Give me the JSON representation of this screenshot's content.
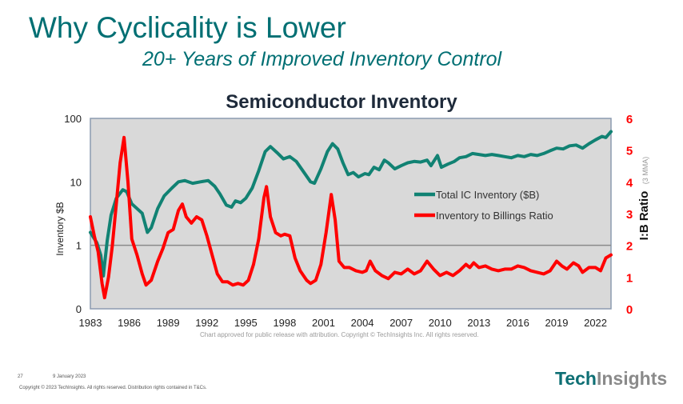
{
  "slide": {
    "title": "Why Cyclicality is Lower",
    "subtitle": "20+ Years of Improved Inventory Control",
    "credit": "Chart approved  for public release with attribution.  Copyright © TechInsights  Inc.  All rights reserved.",
    "page_number": "27",
    "date": "9 January 2023",
    "copyright": "Copyright © 2023 TechInsights. All rights reserved. Distribution rights contained in T&Cs.",
    "logo": {
      "part1": "Tech",
      "part2": "Insights"
    }
  },
  "colors": {
    "title": "#006f73",
    "inventory": "#118273",
    "ratio": "#ff0000",
    "plot_bg": "#d9d9d9",
    "right_axis": "#ff0000"
  },
  "chart_data": {
    "type": "line",
    "title": "Semiconductor Inventory",
    "xlabel": "",
    "ylabel": "Inventory $B",
    "y2label": "I:B Ratio",
    "y2label_note": "(3 MMA)",
    "x_ticks": [
      "1983",
      "1986",
      "1989",
      "1992",
      "1995",
      "1998",
      "2001",
      "2004",
      "2007",
      "2010",
      "2013",
      "2016",
      "2019",
      "2022"
    ],
    "xlim": [
      1983,
      2023.2
    ],
    "y_scale": "log",
    "y_ticks": [
      {
        "value": 0.1,
        "label": "0"
      },
      {
        "value": 1,
        "label": "1"
      },
      {
        "value": 10,
        "label": "10"
      },
      {
        "value": 100,
        "label": "100"
      }
    ],
    "ylim": [
      0.1,
      100
    ],
    "y2_ticks": [
      "0",
      "1",
      "2",
      "3",
      "4",
      "5",
      "6"
    ],
    "y2lim": [
      0,
      6
    ],
    "reference_line": {
      "axis": "y",
      "value": 1
    },
    "legend": {
      "placement": "center-right",
      "entries": [
        "Total IC Inventory  ($B)",
        "Inventory to Billings Ratio"
      ]
    },
    "series": [
      {
        "name": "Total IC Inventory  ($B)",
        "axis": "left",
        "points": [
          [
            1983.0,
            1.6
          ],
          [
            1983.5,
            1.1
          ],
          [
            1983.8,
            0.7
          ],
          [
            1984.0,
            0.33
          ],
          [
            1984.3,
            1.2
          ],
          [
            1984.6,
            3.0
          ],
          [
            1985.0,
            5.5
          ],
          [
            1985.5,
            7.5
          ],
          [
            1985.8,
            7.0
          ],
          [
            1986.2,
            4.5
          ],
          [
            1986.6,
            3.8
          ],
          [
            1987.0,
            3.2
          ],
          [
            1987.4,
            1.6
          ],
          [
            1987.7,
            1.9
          ],
          [
            1988.2,
            3.8
          ],
          [
            1988.7,
            6.0
          ],
          [
            1989.3,
            8.0
          ],
          [
            1989.8,
            10.0
          ],
          [
            1990.3,
            10.5
          ],
          [
            1990.9,
            9.5
          ],
          [
            1991.5,
            10.0
          ],
          [
            1992.1,
            10.5
          ],
          [
            1992.6,
            8.5
          ],
          [
            1993.0,
            6.5
          ],
          [
            1993.5,
            4.3
          ],
          [
            1993.9,
            4.0
          ],
          [
            1994.2,
            5.0
          ],
          [
            1994.6,
            4.7
          ],
          [
            1995.0,
            5.5
          ],
          [
            1995.5,
            8.0
          ],
          [
            1996.0,
            15.0
          ],
          [
            1996.5,
            30.0
          ],
          [
            1996.9,
            36.0
          ],
          [
            1997.4,
            29.0
          ],
          [
            1997.9,
            23.0
          ],
          [
            1998.4,
            25.0
          ],
          [
            1998.9,
            21.0
          ],
          [
            1999.5,
            14.0
          ],
          [
            2000.0,
            10.0
          ],
          [
            2000.3,
            9.5
          ],
          [
            2000.8,
            16.0
          ],
          [
            2001.3,
            30.0
          ],
          [
            2001.7,
            40.0
          ],
          [
            2002.1,
            33.0
          ],
          [
            2002.5,
            20.0
          ],
          [
            2002.9,
            13.0
          ],
          [
            2003.3,
            14.0
          ],
          [
            2003.7,
            12.0
          ],
          [
            2004.2,
            13.5
          ],
          [
            2004.5,
            13.0
          ],
          [
            2004.9,
            17.0
          ],
          [
            2005.3,
            15.5
          ],
          [
            2005.7,
            22.0
          ],
          [
            2006.0,
            20.0
          ],
          [
            2006.5,
            16.0
          ],
          [
            2007.0,
            18.0
          ],
          [
            2007.5,
            20.0
          ],
          [
            2008.0,
            21.0
          ],
          [
            2008.5,
            20.5
          ],
          [
            2009.0,
            22.0
          ],
          [
            2009.3,
            18.0
          ],
          [
            2009.8,
            26.0
          ],
          [
            2010.1,
            17.0
          ],
          [
            2010.6,
            19.0
          ],
          [
            2011.1,
            21.0
          ],
          [
            2011.5,
            24.0
          ],
          [
            2012.0,
            25.0
          ],
          [
            2012.5,
            28.0
          ],
          [
            2013.0,
            27.0
          ],
          [
            2013.5,
            26.0
          ],
          [
            2014.0,
            27.0
          ],
          [
            2014.5,
            26.0
          ],
          [
            2015.0,
            25.0
          ],
          [
            2015.5,
            24.0
          ],
          [
            2016.0,
            26.0
          ],
          [
            2016.5,
            25.0
          ],
          [
            2017.0,
            27.0
          ],
          [
            2017.5,
            26.0
          ],
          [
            2018.0,
            28.0
          ],
          [
            2018.5,
            31.0
          ],
          [
            2019.0,
            34.0
          ],
          [
            2019.5,
            33.0
          ],
          [
            2020.0,
            37.0
          ],
          [
            2020.5,
            38.0
          ],
          [
            2021.0,
            34.0
          ],
          [
            2021.5,
            40.0
          ],
          [
            2022.0,
            46.0
          ],
          [
            2022.5,
            52.0
          ],
          [
            2022.8,
            50.0
          ],
          [
            2023.2,
            62.0
          ]
        ]
      },
      {
        "name": "Inventory to Billings Ratio",
        "axis": "right",
        "points": [
          [
            1983.0,
            2.9
          ],
          [
            1983.3,
            2.3
          ],
          [
            1983.6,
            1.8
          ],
          [
            1983.9,
            0.8
          ],
          [
            1984.1,
            0.35
          ],
          [
            1984.4,
            1.0
          ],
          [
            1984.7,
            2.0
          ],
          [
            1985.0,
            3.3
          ],
          [
            1985.3,
            4.6
          ],
          [
            1985.6,
            5.4
          ],
          [
            1985.9,
            4.0
          ],
          [
            1986.2,
            2.2
          ],
          [
            1986.6,
            1.7
          ],
          [
            1987.0,
            1.1
          ],
          [
            1987.3,
            0.75
          ],
          [
            1987.7,
            0.9
          ],
          [
            1988.2,
            1.5
          ],
          [
            1988.6,
            1.9
          ],
          [
            1989.0,
            2.4
          ],
          [
            1989.4,
            2.5
          ],
          [
            1989.8,
            3.1
          ],
          [
            1990.1,
            3.3
          ],
          [
            1990.4,
            2.9
          ],
          [
            1990.8,
            2.7
          ],
          [
            1991.2,
            2.9
          ],
          [
            1991.6,
            2.8
          ],
          [
            1992.0,
            2.3
          ],
          [
            1992.4,
            1.7
          ],
          [
            1992.8,
            1.1
          ],
          [
            1993.2,
            0.85
          ],
          [
            1993.6,
            0.85
          ],
          [
            1994.0,
            0.75
          ],
          [
            1994.4,
            0.8
          ],
          [
            1994.8,
            0.75
          ],
          [
            1995.2,
            0.9
          ],
          [
            1995.6,
            1.4
          ],
          [
            1996.0,
            2.2
          ],
          [
            1996.4,
            3.5
          ],
          [
            1996.6,
            3.85
          ],
          [
            1996.9,
            2.9
          ],
          [
            1997.3,
            2.4
          ],
          [
            1997.7,
            2.3
          ],
          [
            1998.0,
            2.35
          ],
          [
            1998.4,
            2.3
          ],
          [
            1998.8,
            1.6
          ],
          [
            1999.2,
            1.2
          ],
          [
            1999.7,
            0.9
          ],
          [
            2000.0,
            0.8
          ],
          [
            2000.4,
            0.9
          ],
          [
            2000.8,
            1.4
          ],
          [
            2001.2,
            2.4
          ],
          [
            2001.6,
            3.6
          ],
          [
            2001.9,
            2.8
          ],
          [
            2002.2,
            1.5
          ],
          [
            2002.6,
            1.3
          ],
          [
            2003.0,
            1.3
          ],
          [
            2003.5,
            1.2
          ],
          [
            2004.0,
            1.15
          ],
          [
            2004.3,
            1.2
          ],
          [
            2004.6,
            1.5
          ],
          [
            2005.0,
            1.2
          ],
          [
            2005.5,
            1.05
          ],
          [
            2006.0,
            0.95
          ],
          [
            2006.5,
            1.15
          ],
          [
            2007.0,
            1.1
          ],
          [
            2007.5,
            1.25
          ],
          [
            2008.0,
            1.1
          ],
          [
            2008.5,
            1.2
          ],
          [
            2009.0,
            1.5
          ],
          [
            2009.5,
            1.25
          ],
          [
            2010.0,
            1.05
          ],
          [
            2010.5,
            1.15
          ],
          [
            2011.0,
            1.05
          ],
          [
            2011.5,
            1.2
          ],
          [
            2012.0,
            1.4
          ],
          [
            2012.3,
            1.3
          ],
          [
            2012.6,
            1.45
          ],
          [
            2013.0,
            1.3
          ],
          [
            2013.5,
            1.35
          ],
          [
            2014.0,
            1.25
          ],
          [
            2014.5,
            1.2
          ],
          [
            2015.0,
            1.25
          ],
          [
            2015.5,
            1.25
          ],
          [
            2016.0,
            1.35
          ],
          [
            2016.5,
            1.3
          ],
          [
            2017.0,
            1.2
          ],
          [
            2017.5,
            1.15
          ],
          [
            2018.0,
            1.1
          ],
          [
            2018.5,
            1.2
          ],
          [
            2019.0,
            1.5
          ],
          [
            2019.4,
            1.35
          ],
          [
            2019.8,
            1.25
          ],
          [
            2020.3,
            1.45
          ],
          [
            2020.7,
            1.35
          ],
          [
            2021.0,
            1.15
          ],
          [
            2021.5,
            1.3
          ],
          [
            2022.0,
            1.3
          ],
          [
            2022.4,
            1.2
          ],
          [
            2022.8,
            1.6
          ],
          [
            2023.2,
            1.7
          ]
        ]
      }
    ]
  }
}
